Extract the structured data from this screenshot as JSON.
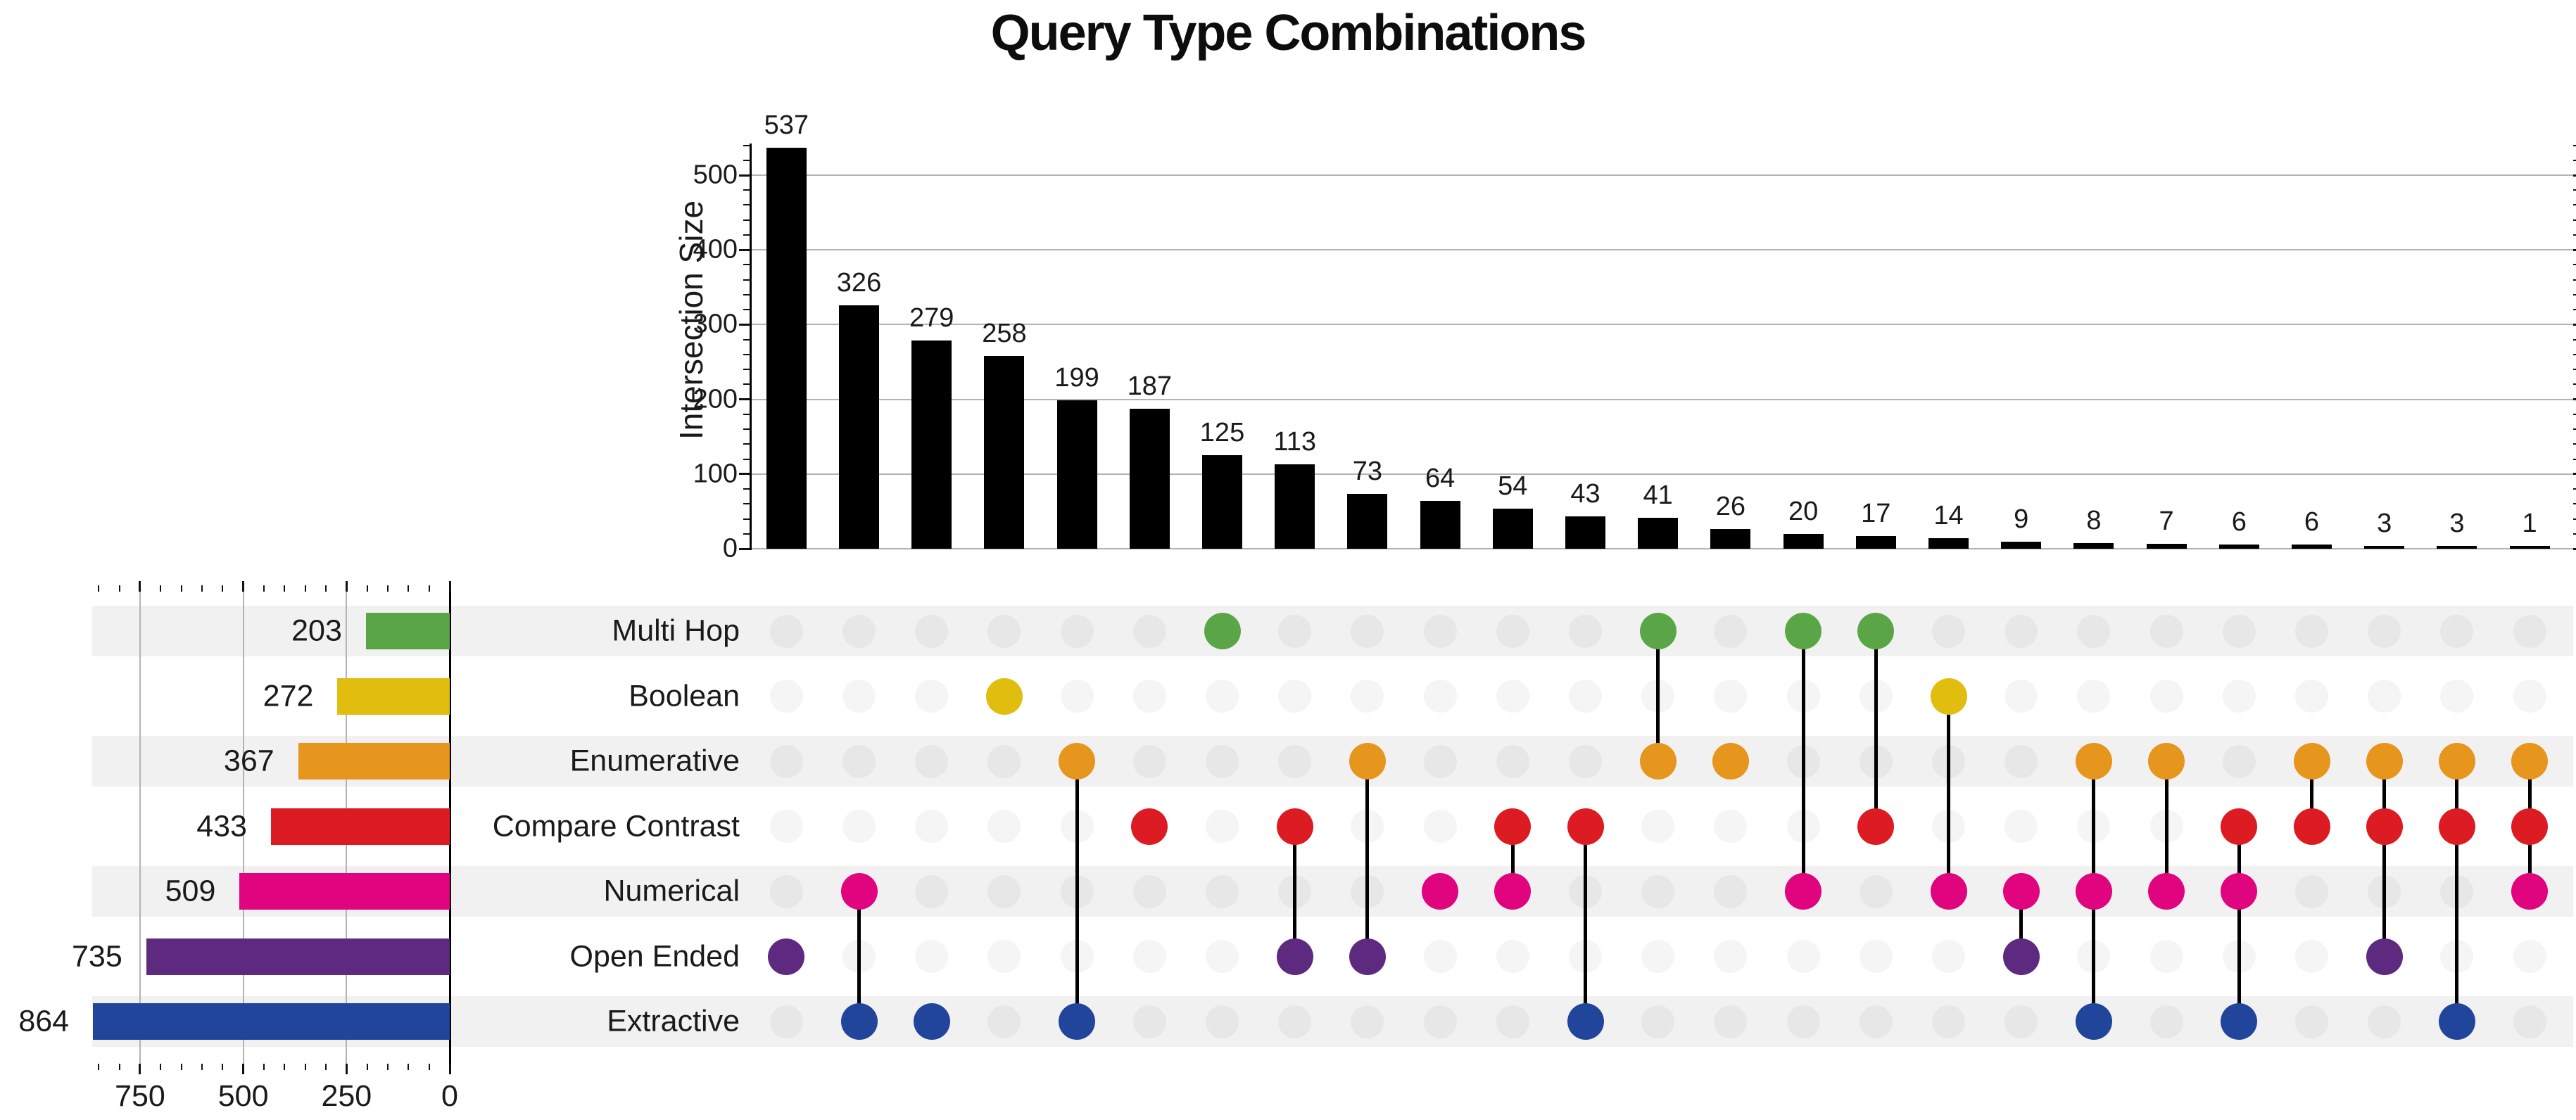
{
  "chart_data": {
    "type": "upset",
    "title": "Query Type Combinations",
    "intersection_axis": {
      "label": "Intersection Size",
      "ticks": [
        0,
        100,
        200,
        300,
        400,
        500
      ],
      "minor_step": 20,
      "minor_max": 540,
      "range": [
        0,
        540
      ]
    },
    "set_size_axis": {
      "ticks": [
        750,
        500,
        250,
        0
      ],
      "minor_step": 50,
      "minor_max": 850,
      "range": [
        864,
        0
      ]
    },
    "grid": true,
    "sets": [
      {
        "name": "Multi Hop",
        "size": 203,
        "color": "#5aa546"
      },
      {
        "name": "Boolean",
        "size": 272,
        "color": "#e0bd0e"
      },
      {
        "name": "Enumerative",
        "size": 367,
        "color": "#e6951d"
      },
      {
        "name": "Compare Contrast",
        "size": 433,
        "color": "#dc1c22"
      },
      {
        "name": "Numerical",
        "size": 509,
        "color": "#e0047f"
      },
      {
        "name": "Open Ended",
        "size": 735,
        "color": "#5e2a80"
      },
      {
        "name": "Extractive",
        "size": 864,
        "color": "#20459b"
      }
    ],
    "intersections": [
      {
        "value": 537,
        "members": [
          "Open Ended"
        ]
      },
      {
        "value": 326,
        "members": [
          "Numerical",
          "Extractive"
        ]
      },
      {
        "value": 279,
        "members": [
          "Extractive"
        ]
      },
      {
        "value": 258,
        "members": [
          "Boolean"
        ]
      },
      {
        "value": 199,
        "members": [
          "Enumerative",
          "Extractive"
        ]
      },
      {
        "value": 187,
        "members": [
          "Compare Contrast"
        ]
      },
      {
        "value": 125,
        "members": [
          "Multi Hop"
        ]
      },
      {
        "value": 113,
        "members": [
          "Compare Contrast",
          "Open Ended"
        ]
      },
      {
        "value": 73,
        "members": [
          "Enumerative",
          "Open Ended"
        ]
      },
      {
        "value": 64,
        "members": [
          "Numerical"
        ]
      },
      {
        "value": 54,
        "members": [
          "Compare Contrast",
          "Numerical"
        ]
      },
      {
        "value": 43,
        "members": [
          "Compare Contrast",
          "Extractive"
        ]
      },
      {
        "value": 41,
        "members": [
          "Multi Hop",
          "Enumerative"
        ]
      },
      {
        "value": 26,
        "members": [
          "Enumerative"
        ]
      },
      {
        "value": 20,
        "members": [
          "Multi Hop",
          "Numerical"
        ]
      },
      {
        "value": 17,
        "members": [
          "Multi Hop",
          "Compare Contrast"
        ]
      },
      {
        "value": 14,
        "members": [
          "Boolean",
          "Numerical"
        ]
      },
      {
        "value": 9,
        "members": [
          "Numerical",
          "Open Ended"
        ]
      },
      {
        "value": 8,
        "members": [
          "Enumerative",
          "Numerical",
          "Extractive"
        ]
      },
      {
        "value": 7,
        "members": [
          "Enumerative",
          "Numerical"
        ]
      },
      {
        "value": 6,
        "members": [
          "Compare Contrast",
          "Numerical",
          "Extractive"
        ]
      },
      {
        "value": 6,
        "members": [
          "Enumerative",
          "Compare Contrast"
        ]
      },
      {
        "value": 3,
        "members": [
          "Enumerative",
          "Compare Contrast",
          "Open Ended"
        ]
      },
      {
        "value": 3,
        "members": [
          "Enumerative",
          "Compare Contrast",
          "Extractive"
        ]
      },
      {
        "value": 1,
        "members": [
          "Enumerative",
          "Compare Contrast",
          "Numerical"
        ]
      }
    ],
    "colors": {
      "intersection_bar": "#000000",
      "stripe": "#f1f1f1",
      "inactive_dot_on_stripe": "#e7e7e7",
      "inactive_dot_on_white": "#f5f5f5",
      "gridline": "#b3b3b3",
      "connector_line": "#000000",
      "text": "#1a1a1a"
    }
  }
}
